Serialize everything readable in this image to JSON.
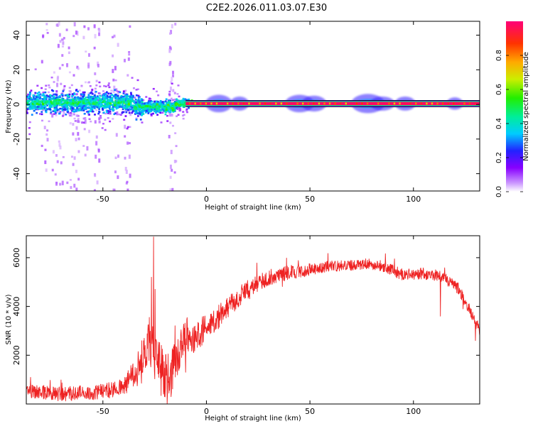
{
  "title": "C2E2.2026.011.03.07.E30",
  "chart_data": [
    {
      "type": "heatmap",
      "name": "frequency-spectrum",
      "xlabel": "Height of straight line (km)",
      "ylabel": "Frequency (Hz)",
      "xlim": [
        -87,
        132
      ],
      "ylim": [
        -50,
        48
      ],
      "xticks": [
        -50,
        0,
        50,
        100
      ],
      "yticks": [
        -40,
        -20,
        0,
        20,
        40
      ],
      "colorbar": {
        "label": "Normalized spectral amplitude",
        "range": [
          0,
          1
        ],
        "ticks": [
          0.0,
          0.2,
          0.4,
          0.6,
          0.8
        ]
      },
      "center_line": {
        "x_start": -10,
        "x_end": 132,
        "frequency": 0.5
      }
    },
    {
      "type": "line",
      "name": "snr-profile",
      "xlabel": "Height of straight line (km)",
      "ylabel": "SNR (10 * v/v)",
      "xlim": [
        -87,
        132
      ],
      "ylim": [
        0,
        6900
      ],
      "xticks": [
        -50,
        0,
        50,
        100
      ],
      "yticks": [
        2000,
        4000,
        6000
      ],
      "color": "#ee2222",
      "trend": {
        "x": [
          -87,
          -70,
          -50,
          -40,
          -35,
          -30,
          -28,
          -25,
          -22,
          -18,
          -15,
          -12,
          -10,
          -5,
          0,
          5,
          10,
          15,
          20,
          30,
          40,
          50,
          60,
          70,
          78,
          85,
          95,
          105,
          115,
          122,
          128,
          132
        ],
        "y": [
          550,
          400,
          500,
          700,
          1200,
          1900,
          2700,
          2000,
          1400,
          1000,
          1700,
          2400,
          2900,
          2700,
          3200,
          3500,
          4000,
          4200,
          4700,
          5200,
          5400,
          5500,
          5650,
          5700,
          5750,
          5650,
          5300,
          5350,
          5200,
          4700,
          3700,
          3000
        ]
      },
      "noise": {
        "x": [
          -87,
          -40,
          -30,
          -22,
          -15,
          -10,
          0,
          20,
          60,
          132
        ],
        "amp": [
          280,
          330,
          1000,
          1100,
          900,
          700,
          550,
          380,
          220,
          250
        ]
      },
      "spikes": [
        {
          "x": -25.5,
          "y": 6850
        },
        {
          "x": -26.5,
          "y": 5200
        },
        {
          "x": -19,
          "y": 0
        },
        {
          "x": -17,
          "y": 300
        },
        {
          "x": -10,
          "y": 1300
        },
        {
          "x": 113,
          "y": 3600
        },
        {
          "x": 124,
          "y": 3900
        },
        {
          "x": 130,
          "y": 2600
        }
      ]
    }
  ]
}
